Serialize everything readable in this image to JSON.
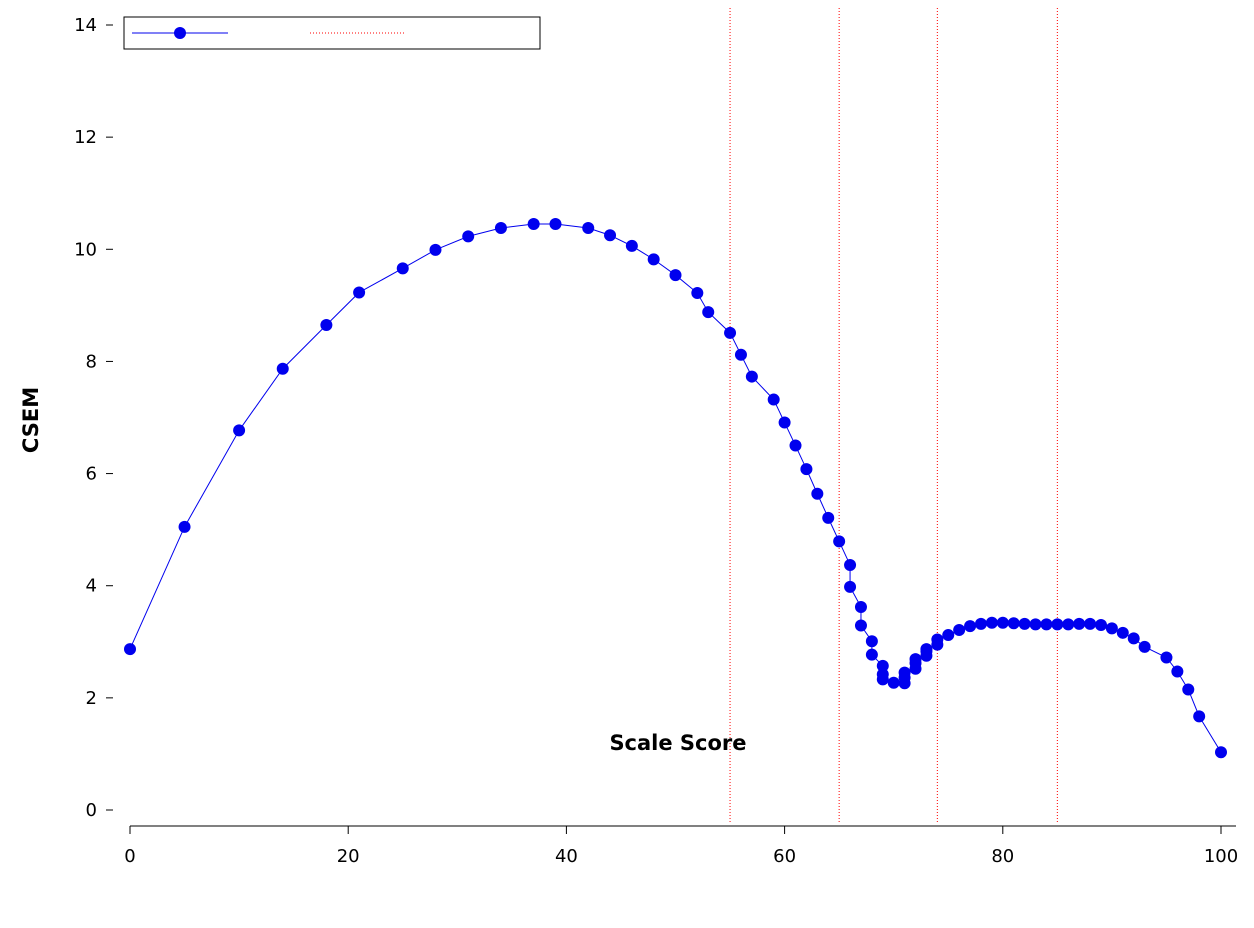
{
  "chart_data": {
    "type": "line",
    "title": "",
    "xlabel": "Scale Score",
    "ylabel": "CSEM",
    "xlim": [
      0,
      100
    ],
    "ylim": [
      0,
      14
    ],
    "x_ticks": [
      0,
      20,
      40,
      60,
      80,
      100
    ],
    "y_ticks": [
      0,
      2,
      4,
      6,
      8,
      10,
      12,
      14
    ],
    "grid": false,
    "legend_position": "top-left",
    "series": [
      {
        "color": "#0000ee",
        "marker": "circle",
        "points": [
          [
            0,
            2.87
          ],
          [
            5,
            5.05
          ],
          [
            10,
            6.77
          ],
          [
            14,
            7.87
          ],
          [
            18,
            8.65
          ],
          [
            21,
            9.23
          ],
          [
            25,
            9.66
          ],
          [
            28,
            9.99
          ],
          [
            31,
            10.23
          ],
          [
            34,
            10.38
          ],
          [
            37,
            10.45
          ],
          [
            39,
            10.45
          ],
          [
            42,
            10.38
          ],
          [
            44,
            10.25
          ],
          [
            46,
            10.06
          ],
          [
            48,
            9.82
          ],
          [
            50,
            9.54
          ],
          [
            52,
            9.22
          ],
          [
            53,
            8.88
          ],
          [
            55,
            8.51
          ],
          [
            56,
            8.12
          ],
          [
            57,
            7.73
          ],
          [
            59,
            7.32
          ],
          [
            60,
            6.91
          ],
          [
            61,
            6.5
          ],
          [
            62,
            6.08
          ],
          [
            63,
            5.64
          ],
          [
            64,
            5.21
          ],
          [
            65,
            4.79
          ],
          [
            66,
            4.37
          ],
          [
            66,
            3.98
          ],
          [
            67,
            3.62
          ],
          [
            67,
            3.29
          ],
          [
            68,
            3.01
          ],
          [
            68,
            2.77
          ],
          [
            69,
            2.57
          ],
          [
            69,
            2.42
          ],
          [
            69,
            2.33
          ],
          [
            70,
            2.27
          ],
          [
            71,
            2.26
          ],
          [
            71,
            2.36
          ],
          [
            71,
            2.45
          ],
          [
            72,
            2.52
          ],
          [
            72,
            2.62
          ],
          [
            72,
            2.69
          ],
          [
            73,
            2.75
          ],
          [
            73,
            2.83
          ],
          [
            73,
            2.87
          ],
          [
            74,
            2.95
          ],
          [
            74,
            3.04
          ],
          [
            75,
            3.12
          ],
          [
            76,
            3.21
          ],
          [
            77,
            3.28
          ],
          [
            78,
            3.32
          ],
          [
            79,
            3.34
          ],
          [
            80,
            3.34
          ],
          [
            81,
            3.33
          ],
          [
            82,
            3.32
          ],
          [
            83,
            3.31
          ],
          [
            84,
            3.31
          ],
          [
            85,
            3.31
          ],
          [
            86,
            3.31
          ],
          [
            87,
            3.32
          ],
          [
            88,
            3.32
          ],
          [
            89,
            3.3
          ],
          [
            90,
            3.24
          ],
          [
            91,
            3.16
          ],
          [
            92,
            3.06
          ],
          [
            93,
            2.91
          ],
          [
            95,
            2.72
          ],
          [
            96,
            2.47
          ],
          [
            97,
            2.15
          ],
          [
            98,
            1.67
          ],
          [
            100,
            1.03
          ]
        ]
      },
      {
        "type": "vline",
        "color": "#ff0000",
        "style": "dotted",
        "x": [
          55,
          65,
          74,
          85
        ]
      }
    ]
  }
}
